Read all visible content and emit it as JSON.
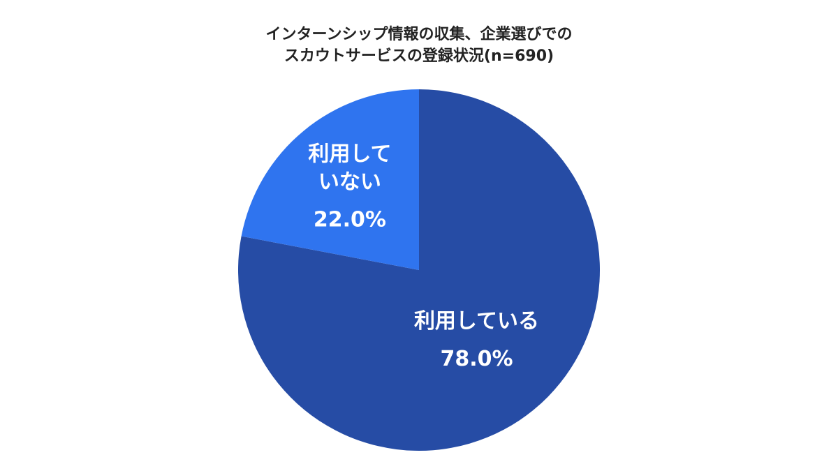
{
  "chart_data": {
    "type": "pie",
    "title_lines": [
      "インターンシップ情報の収集、企業選びでの",
      "スカウトサービスの登録状況(n=690)"
    ],
    "slices": [
      {
        "label_lines": [
          "利用している"
        ],
        "value": 78.0,
        "value_label": "78.0%",
        "color": "#264ca5"
      },
      {
        "label_lines": [
          "利用して",
          "いない"
        ],
        "value": 22.0,
        "value_label": "22.0%",
        "color": "#2f74ef"
      }
    ],
    "start": "top",
    "direction": "clockwise",
    "legend": "none"
  }
}
